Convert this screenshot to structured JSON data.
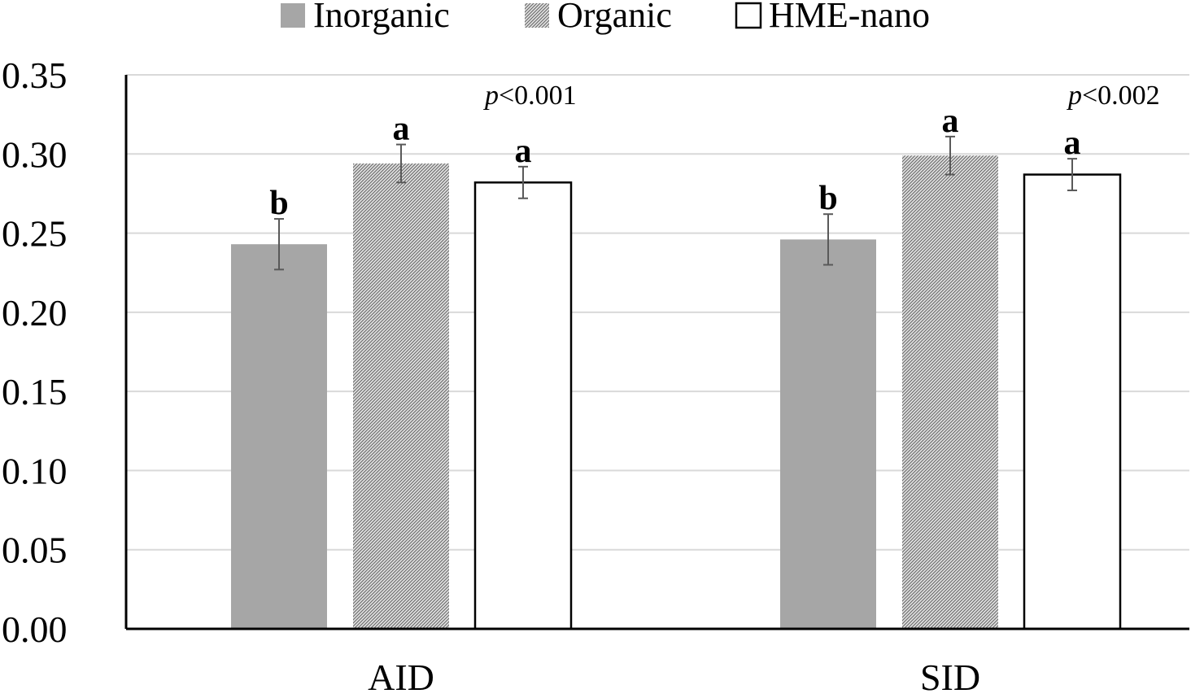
{
  "chart_data": {
    "type": "bar",
    "categories": [
      "AID",
      "SID"
    ],
    "series": [
      {
        "name": "Inorganic",
        "values": [
          0.243,
          0.246
        ],
        "errors": [
          0.016,
          0.016
        ],
        "letters": [
          "b",
          "b"
        ],
        "color": "#a6a6a6",
        "pattern": "solid"
      },
      {
        "name": "Organic",
        "values": [
          0.294,
          0.299
        ],
        "errors": [
          0.012,
          0.012
        ],
        "letters": [
          "a",
          "a"
        ],
        "color": "#bfbfbf",
        "pattern": "hatched"
      },
      {
        "name": "HME-nano",
        "values": [
          0.282,
          0.287
        ],
        "errors": [
          0.01,
          0.01
        ],
        "letters": [
          "a",
          "a"
        ],
        "color": "#ffffff",
        "pattern": "outline"
      }
    ],
    "yticks": [
      "0.00",
      "0.05",
      "0.10",
      "0.15",
      "0.20",
      "0.25",
      "0.30",
      "0.35"
    ],
    "ylim": [
      0,
      0.35
    ],
    "grid": true,
    "legend_position": "top",
    "annotations": [
      {
        "category": "AID",
        "italic": "p",
        "text": "<0.001"
      },
      {
        "category": "SID",
        "italic": "p",
        "text": "<0.002"
      }
    ]
  }
}
